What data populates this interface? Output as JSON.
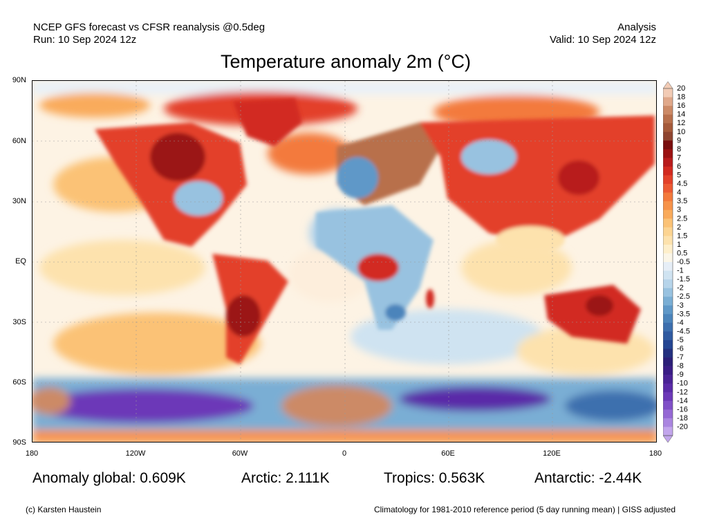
{
  "header": {
    "source_line": "NCEP GFS forecast vs CFSR reanalysis @0.5deg",
    "run_line": "Run: 10 Sep 2024 12z",
    "analysis_label": "Analysis",
    "valid_line": "Valid: 10 Sep 2024 12z"
  },
  "title": "Temperature anomaly 2m (°C)",
  "map": {
    "lat_labels": [
      "90N",
      "60N",
      "30N",
      "EQ",
      "30S",
      "60S",
      "90S"
    ],
    "lon_labels": [
      "180",
      "120W",
      "60W",
      "0",
      "60E",
      "120E",
      "180"
    ],
    "colorbar_labels": [
      "20",
      "18",
      "16",
      "14",
      "12",
      "10",
      "9",
      "8",
      "7",
      "6",
      "5",
      "4.5",
      "4",
      "3.5",
      "3",
      "2.5",
      "2",
      "1.5",
      "1",
      "0.5",
      "-0.5",
      "-1",
      "-1.5",
      "-2",
      "-2.5",
      "-3",
      "-3.5",
      "-4",
      "-4.5",
      "-5",
      "-6",
      "-7",
      "-8",
      "-9",
      "-10",
      "-12",
      "-14",
      "-16",
      "-18",
      "-20"
    ],
    "colorbar_colors": [
      "#f2cbb5",
      "#e0a88a",
      "#cc8a66",
      "#b8704c",
      "#a55a3a",
      "#8f4530",
      "#7a0e0e",
      "#9b1212",
      "#b81c1c",
      "#d22a20",
      "#e3412a",
      "#ec5a33",
      "#f37a3c",
      "#f7934a",
      "#f9ab5c",
      "#fbc276",
      "#fcd492",
      "#fde2ad",
      "#feefcb",
      "#fbf6e8",
      "#e6eef7",
      "#cfe3f1",
      "#b6d4ea",
      "#98c2e0",
      "#7aaed4",
      "#5f98c8",
      "#4b84bb",
      "#3c6fae",
      "#2f5aa1",
      "#244592",
      "#23307f",
      "#2b1f78",
      "#3a1d86",
      "#4a2396",
      "#5a2ba8",
      "#6c39b8",
      "#8050c8",
      "#9568d4",
      "#aa85e0",
      "#c2a5ec"
    ]
  },
  "stats": {
    "global": "Anomaly global: 0.609K",
    "arctic": "Arctic: 2.111K",
    "tropics": "Tropics: 0.563K",
    "antarctic": "Antarctic: -2.44K"
  },
  "footer": {
    "credit": "(c) Karsten Haustein",
    "climatology": "Climatology for 1981-2010 reference period (5 day running mean) | GISS adjusted"
  }
}
